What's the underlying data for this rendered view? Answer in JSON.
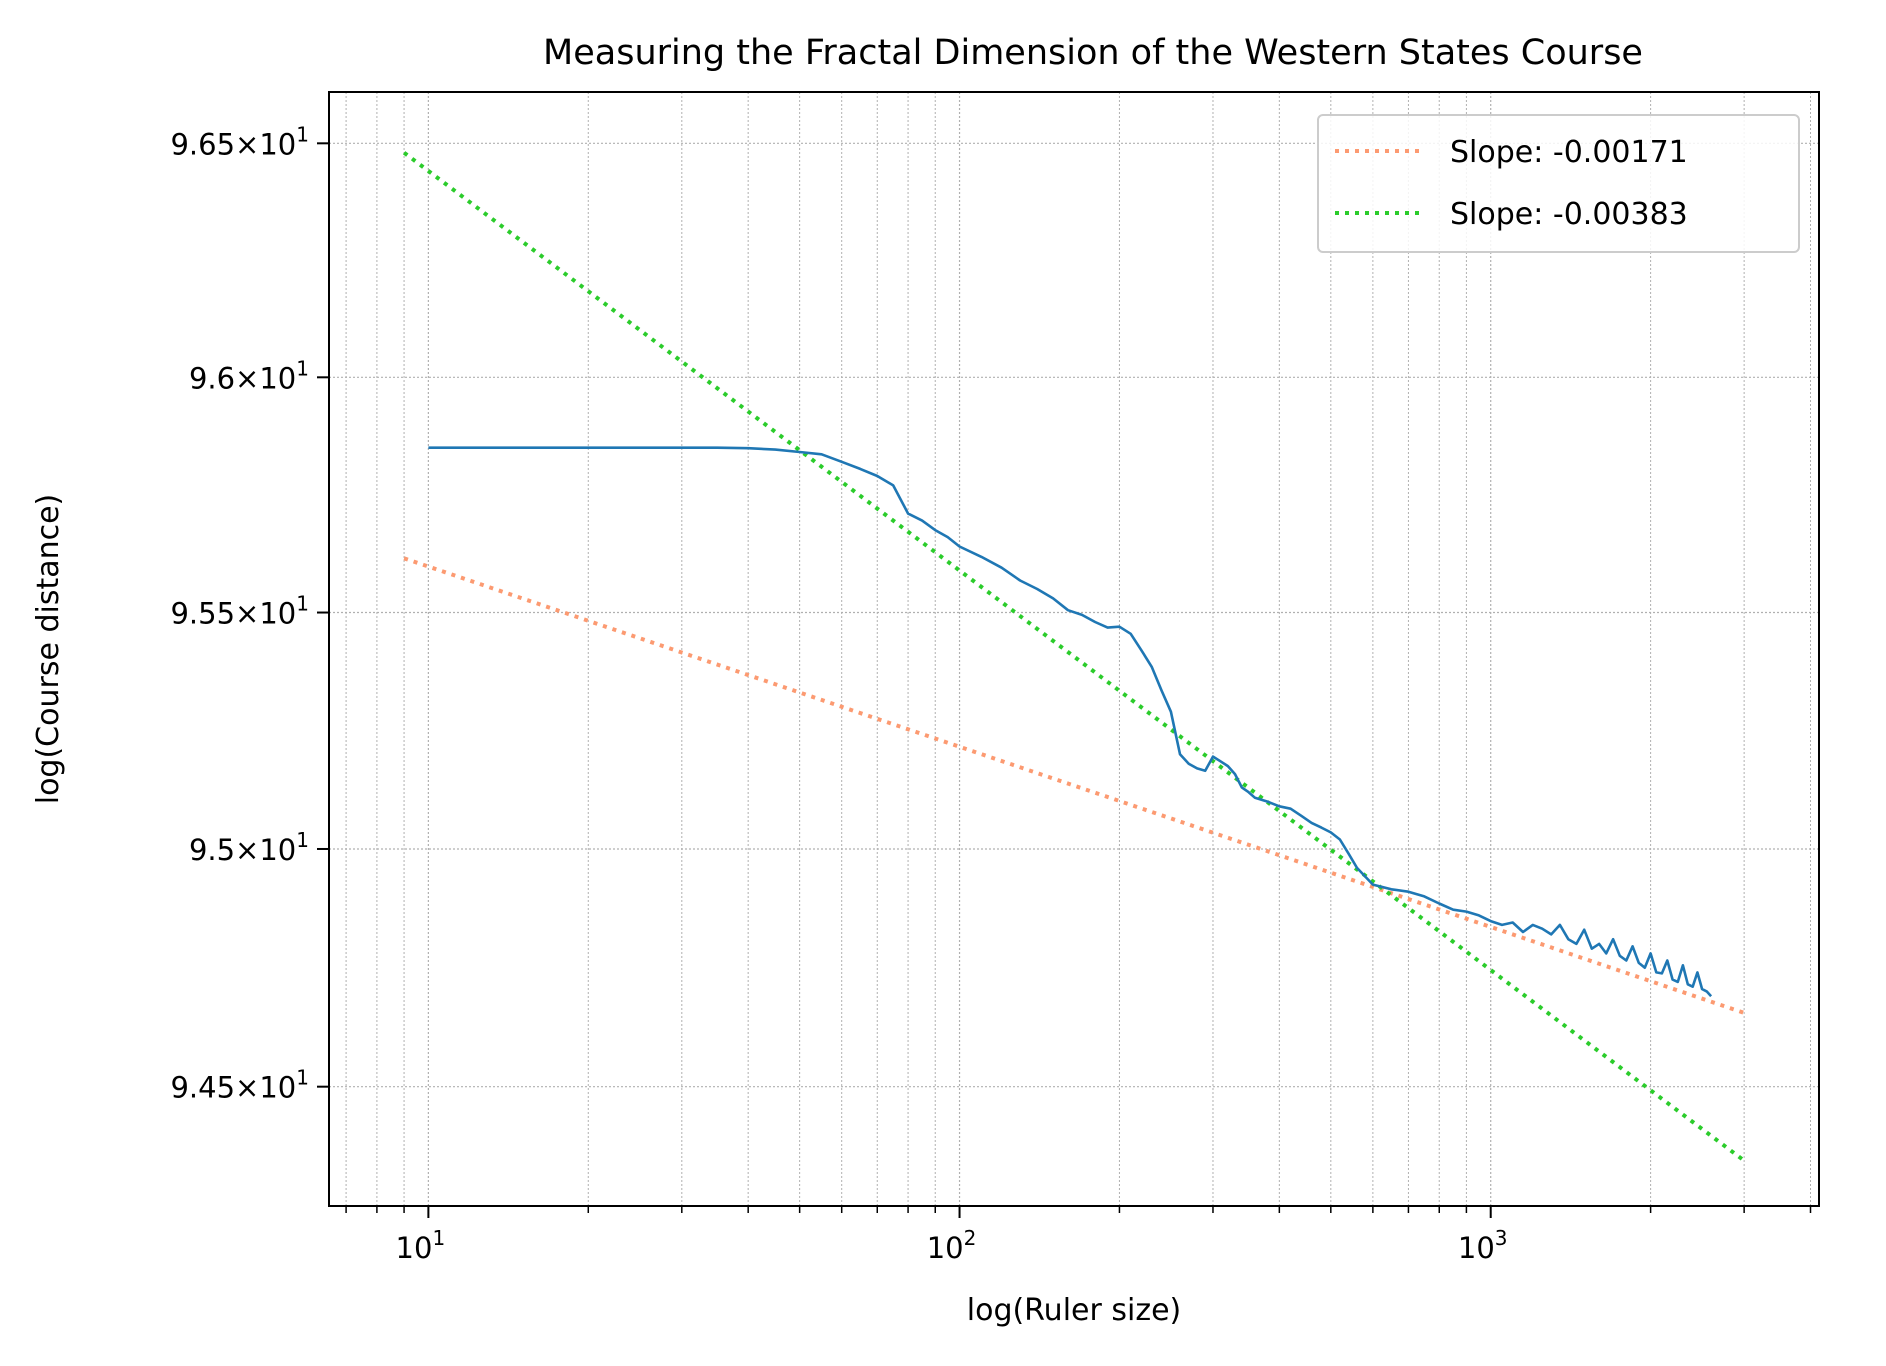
{
  "chart_data": {
    "type": "line",
    "title": "Measuring the Fractal Dimension of the Western States Course",
    "xlabel": "log(Ruler size)",
    "ylabel": "log(Course distance)",
    "x_scale": "log",
    "y_scale": "log",
    "xlim": [
      6.5,
      4150
    ],
    "ylim": [
      94.25,
      96.61
    ],
    "grid": true,
    "legend_position": "top-right",
    "x_ticks": [
      {
        "value": 10,
        "base": "10",
        "exp": "1"
      },
      {
        "value": 100,
        "base": "10",
        "exp": "2"
      },
      {
        "value": 1000,
        "base": "10",
        "exp": "3"
      }
    ],
    "y_ticks": [
      {
        "value": 96.5,
        "mant": "9.65",
        "base": "10",
        "exp": "1"
      },
      {
        "value": 96.0,
        "mant": "9.6",
        "base": "10",
        "exp": "1"
      },
      {
        "value": 95.5,
        "mant": "9.55",
        "base": "10",
        "exp": "1"
      },
      {
        "value": 95.0,
        "mant": "9.5",
        "base": "10",
        "exp": "1"
      },
      {
        "value": 94.5,
        "mant": "9.45",
        "base": "10",
        "exp": "1"
      }
    ],
    "series": [
      {
        "color": "#1f77b4",
        "style": "solid",
        "x": [
          10,
          15,
          20,
          25,
          30,
          35,
          40,
          45,
          50,
          55,
          60,
          65,
          70,
          75,
          80,
          85,
          90,
          95,
          100,
          110,
          120,
          130,
          140,
          150,
          160,
          170,
          180,
          190,
          200,
          210,
          220,
          230,
          240,
          250,
          260,
          270,
          280,
          290,
          300,
          310,
          320,
          330,
          340,
          350,
          360,
          380,
          400,
          420,
          440,
          460,
          480,
          500,
          520,
          540,
          560,
          600,
          650,
          700,
          750,
          800,
          850,
          900,
          950,
          1000,
          1050,
          1100,
          1150,
          1200,
          1250,
          1300,
          1350,
          1400,
          1450,
          1500,
          1550,
          1600,
          1650,
          1700,
          1750,
          1800,
          1850,
          1900,
          1950,
          2000,
          2050,
          2100,
          2150,
          2200,
          2250,
          2300,
          2350,
          2400,
          2450,
          2500,
          2550,
          2600
        ],
        "y": [
          95.85,
          95.85,
          95.85,
          95.85,
          95.85,
          95.85,
          95.849,
          95.846,
          95.841,
          95.836,
          95.82,
          95.805,
          95.79,
          95.77,
          95.71,
          95.695,
          95.675,
          95.66,
          95.64,
          95.618,
          95.595,
          95.568,
          95.55,
          95.53,
          95.505,
          95.495,
          95.48,
          95.468,
          95.47,
          95.455,
          95.42,
          95.385,
          95.335,
          95.29,
          95.2,
          95.18,
          95.17,
          95.165,
          95.195,
          95.185,
          95.175,
          95.158,
          95.13,
          95.12,
          95.108,
          95.1,
          95.09,
          95.085,
          95.07,
          95.055,
          95.045,
          95.035,
          95.02,
          94.99,
          94.96,
          94.925,
          94.915,
          94.91,
          94.9,
          94.885,
          94.872,
          94.868,
          94.86,
          94.848,
          94.84,
          94.845,
          94.825,
          94.84,
          94.832,
          94.82,
          94.84,
          94.81,
          94.8,
          94.83,
          94.79,
          94.8,
          94.78,
          94.81,
          94.775,
          94.765,
          94.795,
          94.76,
          94.75,
          94.78,
          94.74,
          94.738,
          94.765,
          94.725,
          94.72,
          94.755,
          94.715,
          94.71,
          94.74,
          94.705,
          94.7,
          94.69
        ]
      },
      {
        "name": "Slope: -0.00171",
        "color": "#fc9a71",
        "style": "dotted",
        "x": [
          9,
          3000
        ],
        "y": [
          95.615,
          94.655
        ]
      },
      {
        "name": "Slope: -0.00383",
        "color": "#2bcc2b",
        "style": "dotted",
        "x": [
          9,
          3000
        ],
        "y": [
          96.48,
          94.345
        ]
      }
    ]
  }
}
